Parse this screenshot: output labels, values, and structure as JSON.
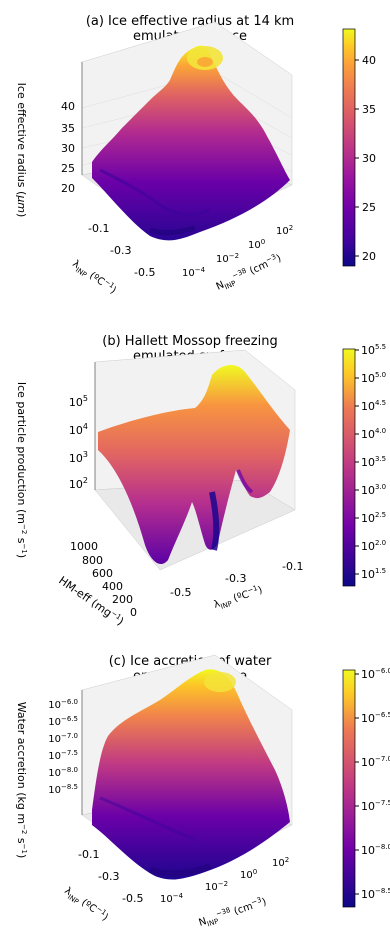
{
  "panels": [
    {
      "title_line1": "(a) Ice effective radius at 14 km",
      "title_line2": "emulated surface",
      "zlabel": "Ice effective radius (μm)",
      "xlabel_html": "N_INP^-38 (cm^-3)",
      "ylabel_html": "λ_INP (ºC^-1)",
      "colorbar_ticks": [
        "40",
        "35",
        "30",
        "25",
        "20"
      ],
      "z_ticks": [
        "40",
        "35",
        "30",
        "25",
        "20"
      ],
      "x_ticks": [
        "10^-4",
        "10^-2",
        "10^0",
        "10^2"
      ],
      "y_ticks": [
        "-0.1",
        "-0.3",
        "-0.5"
      ]
    },
    {
      "title_line1": "(b) Hallett Mossop freezing",
      "title_line2": "emulated surface",
      "zlabel": "Ice particle production (m^-2 s^-1)",
      "xlabel_html": "λ_INP (ºC^-1)",
      "ylabel_html": "HM-eff (mg^-1)",
      "colorbar_ticks": [
        "10^5.5",
        "10^5.0",
        "10^4.5",
        "10^4.0",
        "10^3.5",
        "10^3.0",
        "10^2.5",
        "10^2.0",
        "10^1.5"
      ],
      "z_ticks": [
        "10^5",
        "10^4",
        "10^3",
        "10^2"
      ],
      "x_ticks": [
        "-0.5",
        "-0.3",
        "-0.1"
      ],
      "y_ticks": [
        "1000",
        "800",
        "600",
        "400",
        "200",
        "0"
      ]
    },
    {
      "title_line1": "(c) Ice accretion of water",
      "title_line2": "emulated surface",
      "zlabel": "Water accretion (kg m^-2 s^-1)",
      "xlabel_html": "N_INP^-38 (cm^-3)",
      "ylabel_html": "λ_INP (ºC^-1)",
      "colorbar_ticks": [
        "10^-6.0",
        "10^-6.5",
        "10^-7.0",
        "10^-7.5",
        "10^-8.0",
        "10^-8.5"
      ],
      "z_ticks": [
        "10^-6.0",
        "10^-6.5",
        "10^-7.0",
        "10^-7.5",
        "10^-8.0",
        "10^-8.5"
      ],
      "x_ticks": [
        "10^-4",
        "10^-2",
        "10^0",
        "10^2"
      ],
      "y_ticks": [
        "-0.1",
        "-0.3",
        "-0.5"
      ]
    }
  ],
  "chart_data": [
    {
      "type": "surface3d",
      "title": "(a) Ice effective radius at 14 km emulated surface",
      "zlabel": "Ice effective radius (μm)",
      "xlabel": "N_INP-38 (cm^-3)",
      "ylabel": "λ_INP (°C^-1)",
      "zlim": [
        18,
        43
      ],
      "colormap": "plasma",
      "colorbar_range": [
        19,
        43
      ]
    },
    {
      "type": "surface3d",
      "title": "(b) Hallett Mossop freezing emulated surface",
      "zlabel": "Ice particle production (m^-2 s^-1)",
      "xlabel": "λ_INP (°C^-1)",
      "ylabel": "HM-eff (mg^-1)",
      "zscale": "log",
      "colormap": "plasma",
      "colorbar_range_log10": [
        1.3,
        5.5
      ]
    },
    {
      "type": "surface3d",
      "title": "(c) Ice accretion of water emulated surface",
      "zlabel": "Water accretion (kg m^-2 s^-1)",
      "xlabel": "N_INP-38 (cm^-3)",
      "ylabel": "λ_INP (°C^-1)",
      "zscale": "log",
      "colormap": "plasma",
      "colorbar_range_log10": [
        -8.6,
        -5.9
      ]
    }
  ],
  "colors": {
    "plasma": [
      "#0d0887",
      "#46039f",
      "#7201a8",
      "#9c179e",
      "#bd3786",
      "#d8576b",
      "#ed7953",
      "#fb9f3a",
      "#fdca26",
      "#f0f921"
    ]
  }
}
